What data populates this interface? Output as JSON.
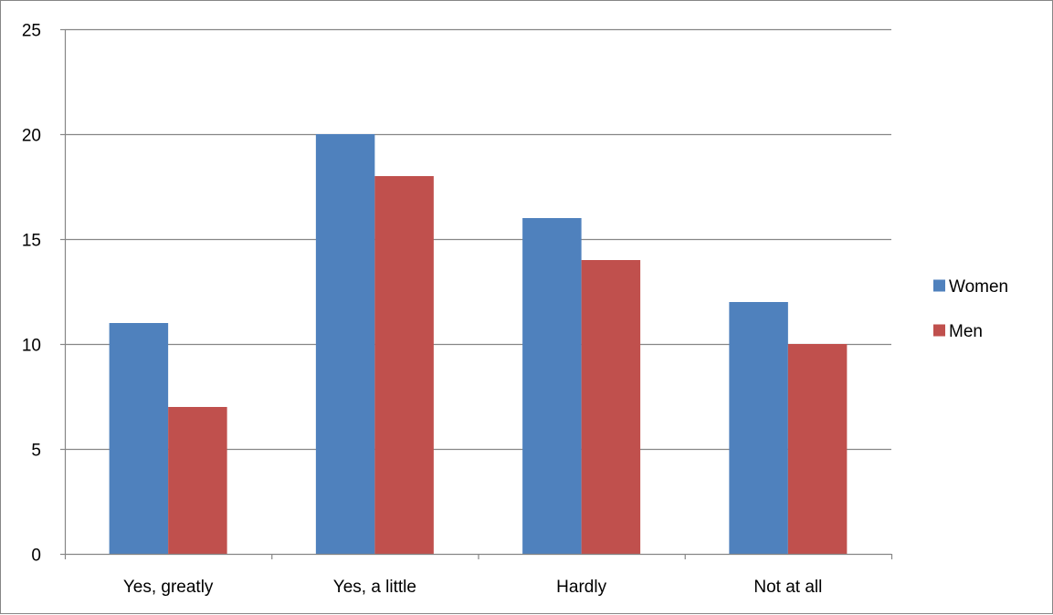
{
  "chart_data": {
    "type": "bar",
    "title": "",
    "xlabel": "",
    "ylabel": "",
    "categories": [
      "Yes, greatly",
      "Yes, a little",
      "Hardly",
      "Not at all"
    ],
    "series": [
      {
        "name": "Women",
        "values": [
          11,
          20,
          16,
          12
        ],
        "color": "#4F81BD"
      },
      {
        "name": "Men",
        "values": [
          7,
          18,
          14,
          10
        ],
        "color": "#C0504D"
      }
    ],
    "ylim": [
      0,
      25
    ],
    "yticks": [
      0,
      5,
      10,
      15,
      20,
      25
    ],
    "grid": true,
    "legend": "right",
    "gridline_color": "#868686"
  }
}
